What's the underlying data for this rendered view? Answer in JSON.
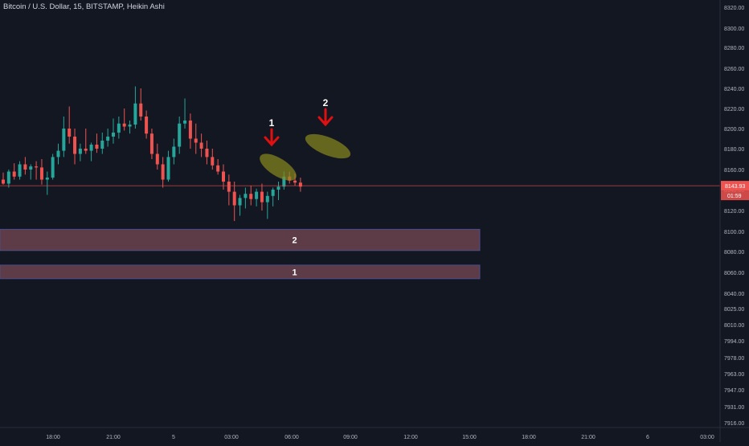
{
  "header": {
    "symbol_title": "Bitcoin / U.S. Dollar, 15, BITSTAMP, Heikin Ashi"
  },
  "price_axis": {
    "tick_labels": [
      "8320.00",
      "8300.00",
      "8280.00",
      "8260.00",
      "8240.00",
      "8220.00",
      "8200.00",
      "8180.00",
      "8160.00",
      "8140.00",
      "8120.00",
      "8100.00",
      "8080.00",
      "8060.00",
      "8040.00",
      "8025.00",
      "8010.00",
      "7994.00",
      "7978.00",
      "7963.00",
      "7947.00",
      "7931.00",
      "7916.00"
    ],
    "last_price_label": "8143.93",
    "countdown_label": "01:59"
  },
  "time_axis": {
    "tick_labels": [
      "18:00",
      "21:00",
      "5",
      "03:00",
      "06:00",
      "09:00",
      "12:00",
      "15:00",
      "18:00",
      "21:00",
      "6",
      "03:00"
    ]
  },
  "annotations": {
    "arrow_1_label": "1",
    "arrow_2_label": "2",
    "zone_1_label": "1",
    "zone_2_label": "2"
  },
  "colors": {
    "background": "#131722",
    "up_candle": "#26a69a",
    "down_candle": "#ef5350",
    "last_price_line": "#ef5350",
    "zone_fill": "#5d3b47",
    "zone_border": "#4a4e8a",
    "ellipse_fill": "#8a8a1e",
    "arrow": "#e01010",
    "axis_text": "#b2b5be"
  },
  "chart_data": {
    "type": "candlestick",
    "title": "Bitcoin / U.S. Dollar, 15, BITSTAMP, Heikin Ashi",
    "interval": "15",
    "exchange": "BITSTAMP",
    "style": "Heikin Ashi",
    "last_price": 8143.93,
    "countdown": "01:59",
    "ylim": [
      7916,
      8320
    ],
    "grid": false,
    "candles": [
      [
        8150,
        8157,
        8145,
        8146
      ],
      [
        8146,
        8160,
        8142,
        8158
      ],
      [
        8158,
        8166,
        8150,
        8153
      ],
      [
        8153,
        8168,
        8150,
        8165
      ],
      [
        8165,
        8172,
        8155,
        8160
      ],
      [
        8160,
        8165,
        8150,
        8163
      ],
      [
        8163,
        8168,
        8150,
        8162
      ],
      [
        8162,
        8170,
        8145,
        8150
      ],
      [
        8150,
        8158,
        8135,
        8152
      ],
      [
        8152,
        8175,
        8150,
        8172
      ],
      [
        8172,
        8185,
        8165,
        8178
      ],
      [
        8178,
        8212,
        8172,
        8200
      ],
      [
        8200,
        8222,
        8185,
        8192
      ],
      [
        8192,
        8200,
        8165,
        8175
      ],
      [
        8175,
        8185,
        8168,
        8180
      ],
      [
        8180,
        8200,
        8175,
        8178
      ],
      [
        8178,
        8186,
        8168,
        8184
      ],
      [
        8184,
        8195,
        8176,
        8180
      ],
      [
        8180,
        8196,
        8175,
        8188
      ],
      [
        8188,
        8200,
        8182,
        8192
      ],
      [
        8192,
        8210,
        8185,
        8196
      ],
      [
        8196,
        8212,
        8190,
        8205
      ],
      [
        8205,
        8220,
        8198,
        8202
      ],
      [
        8202,
        8208,
        8195,
        8204
      ],
      [
        8204,
        8242,
        8200,
        8225
      ],
      [
        8225,
        8240,
        8208,
        8212
      ],
      [
        8212,
        8218,
        8190,
        8195
      ],
      [
        8195,
        8200,
        8170,
        8175
      ],
      [
        8175,
        8185,
        8160,
        8165
      ],
      [
        8165,
        8172,
        8142,
        8150
      ],
      [
        8150,
        8178,
        8148,
        8172
      ],
      [
        8172,
        8190,
        8165,
        8182
      ],
      [
        8182,
        8212,
        8175,
        8205
      ],
      [
        8205,
        8230,
        8200,
        8208
      ],
      [
        8208,
        8215,
        8180,
        8190
      ],
      [
        8190,
        8205,
        8175,
        8186
      ],
      [
        8186,
        8195,
        8172,
        8180
      ],
      [
        8180,
        8188,
        8165,
        8172
      ],
      [
        8172,
        8180,
        8160,
        8164
      ],
      [
        8164,
        8170,
        8155,
        8158
      ],
      [
        8158,
        8165,
        8140,
        8148
      ],
      [
        8148,
        8155,
        8125,
        8138
      ],
      [
        8138,
        8148,
        8110,
        8125
      ],
      [
        8125,
        8135,
        8115,
        8132
      ],
      [
        8132,
        8142,
        8122,
        8136
      ],
      [
        8136,
        8144,
        8125,
        8131
      ],
      [
        8131,
        8141,
        8124,
        8138
      ],
      [
        8138,
        8146,
        8120,
        8128
      ],
      [
        8128,
        8138,
        8112,
        8134
      ],
      [
        8134,
        8142,
        8124,
        8140
      ],
      [
        8140,
        8148,
        8130,
        8143
      ],
      [
        8143,
        8158,
        8140,
        8153
      ],
      [
        8153,
        8158,
        8146,
        8149
      ],
      [
        8149,
        8156,
        8144,
        8147
      ],
      [
        8147,
        8152,
        8138,
        8143
      ]
    ],
    "x_tick_labels": [
      "18:00",
      "21:00",
      "5",
      "03:00",
      "06:00",
      "09:00",
      "12:00",
      "15:00",
      "18:00",
      "21:00",
      "6",
      "03:00"
    ],
    "y_tick_labels": [
      "8320.00",
      "8300.00",
      "8280.00",
      "8260.00",
      "8240.00",
      "8220.00",
      "8200.00",
      "8180.00",
      "8160.00",
      "8140.00",
      "8120.00",
      "8100.00",
      "8080.00",
      "8060.00",
      "8040.00",
      "8025.00",
      "8010.00",
      "7994.00",
      "7978.00",
      "7963.00",
      "7947.00",
      "7931.00",
      "7916.00"
    ],
    "zones": [
      {
        "label": "2",
        "price_low": 8081,
        "price_high": 8102
      },
      {
        "label": "1",
        "price_low": 8054,
        "price_high": 8067
      }
    ],
    "markers": [
      {
        "label": "1",
        "type": "down-arrow",
        "time": "05:30"
      },
      {
        "label": "2",
        "type": "down-arrow",
        "time": "07:45"
      }
    ]
  }
}
